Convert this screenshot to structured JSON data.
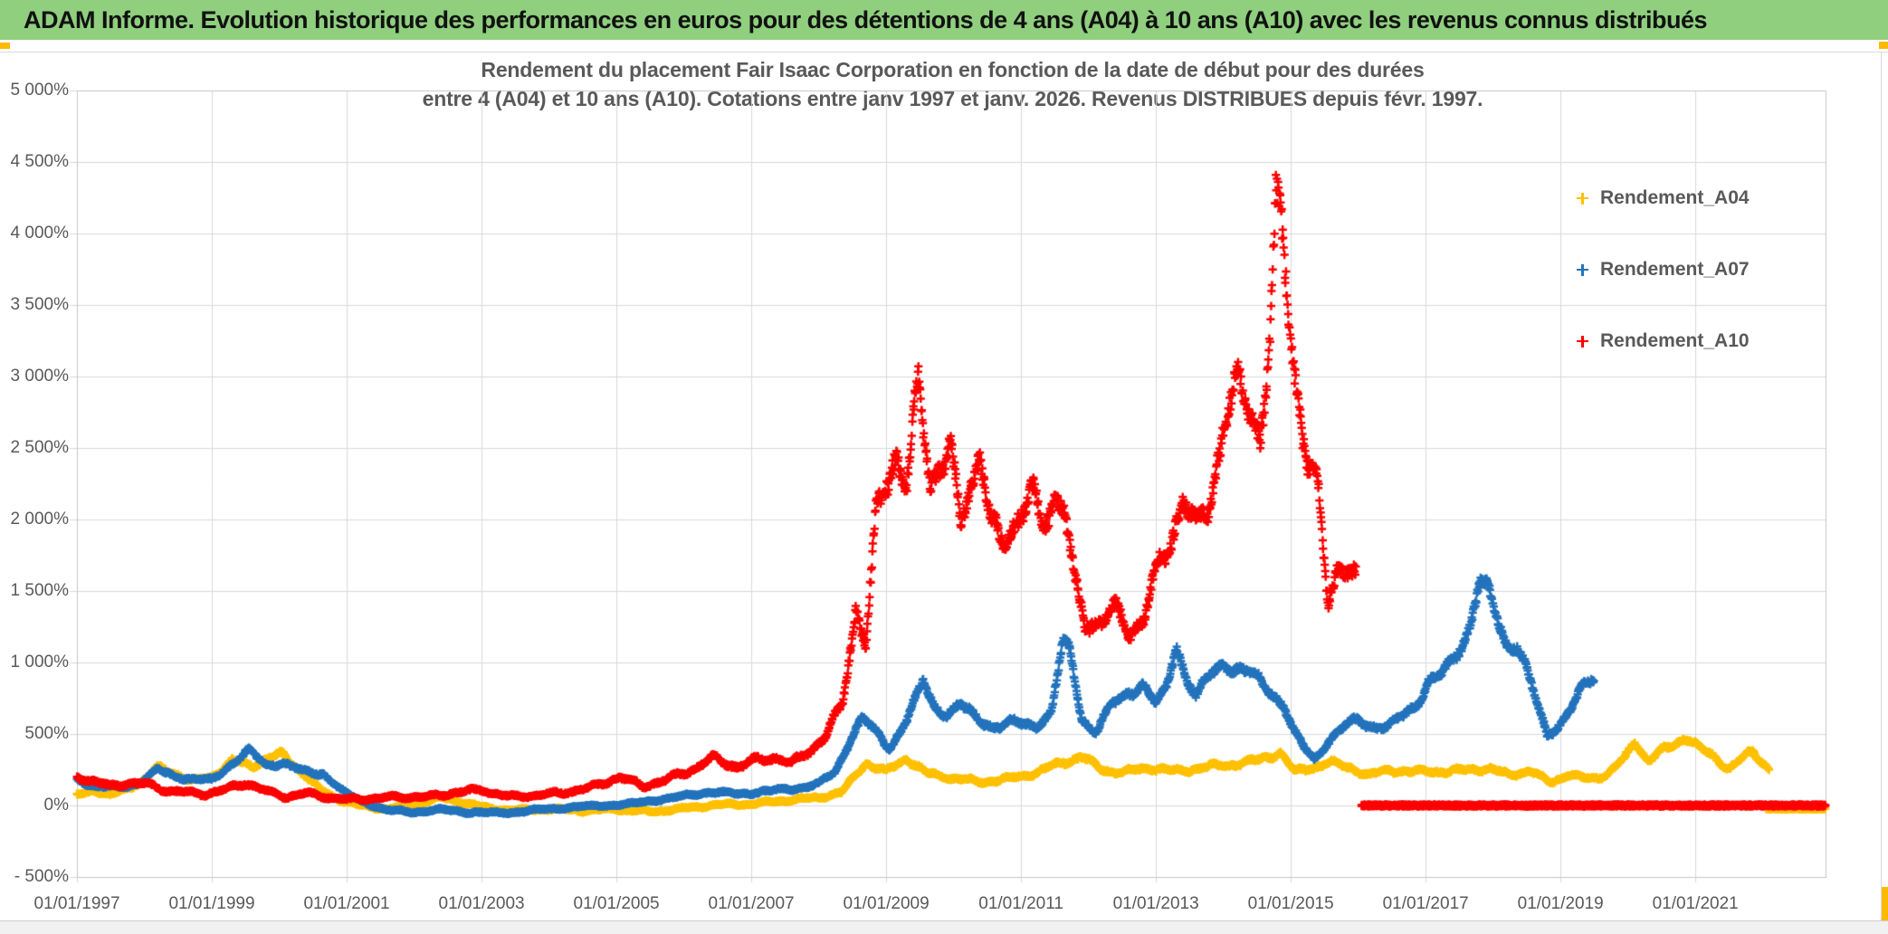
{
  "header": {
    "title": "ADAM Informe. Evolution historique des performances en euros pour des détentions de 4 ans (A04) à 10 ans (A10) avec les revenus connus distribués"
  },
  "chart": {
    "title_line1": "Rendement du placement Fair Isaac Corporation en fonction de la date de début pour des durées",
    "title_line2": "entre 4 (A04) et 10 ans (A10). Cotations entre janv 1997 et janv. 2026. Revenus DISTRIBUES depuis févr. 1997."
  },
  "chart_data": {
    "type": "scatter",
    "marker": "plus",
    "grid": true,
    "legend_position": "right-top",
    "colors": {
      "grid": "#d9d9d9",
      "border": "#c6c6c6",
      "axis_text": "#595959",
      "title_text": "#595959",
      "header_bg": "#8FCF7E",
      "accent": "#FFB900"
    },
    "x_axis": {
      "min": 1997.0,
      "max": 2022.93,
      "ticks": [
        [
          "01/01/1997",
          1997
        ],
        [
          "01/01/1999",
          1999
        ],
        [
          "01/01/2001",
          2001
        ],
        [
          "01/01/2003",
          2003
        ],
        [
          "01/01/2005",
          2005
        ],
        [
          "01/01/2007",
          2007
        ],
        [
          "01/01/2009",
          2009
        ],
        [
          "01/01/2011",
          2011
        ],
        [
          "01/01/2013",
          2013
        ],
        [
          "01/01/2015",
          2015
        ],
        [
          "01/01/2017",
          2017
        ],
        [
          "01/01/2019",
          2019
        ],
        [
          "01/01/2021",
          2021
        ]
      ]
    },
    "y_axis": {
      "min": -500,
      "max": 5000,
      "step": 500,
      "ticks": [
        [
          "5 000%",
          5000
        ],
        [
          "4 500%",
          4500
        ],
        [
          "4 000%",
          4000
        ],
        [
          "3 500%",
          3500
        ],
        [
          "3 000%",
          3000
        ],
        [
          "2 500%",
          2500
        ],
        [
          "2 000%",
          2000
        ],
        [
          "1 500%",
          1500
        ],
        [
          "1 000%",
          1000
        ],
        [
          "500%",
          500
        ],
        [
          "0%",
          0
        ],
        [
          "- 500%",
          -500
        ]
      ]
    },
    "series": [
      {
        "name": "Rendement_A04",
        "color": "#FFC000",
        "seed": 11,
        "noise_base": 14,
        "noise_k": 0.05,
        "anchors": [
          [
            1997.0,
            70
          ],
          [
            1997.25,
            110
          ],
          [
            1997.5,
            70
          ],
          [
            1997.75,
            120
          ],
          [
            1998.0,
            180
          ],
          [
            1998.2,
            265
          ],
          [
            1998.45,
            230
          ],
          [
            1998.7,
            170
          ],
          [
            1999.0,
            200
          ],
          [
            1999.3,
            310
          ],
          [
            1999.6,
            280
          ],
          [
            1999.85,
            330
          ],
          [
            2000.05,
            355
          ],
          [
            2000.3,
            250
          ],
          [
            2000.6,
            110
          ],
          [
            2000.9,
            40
          ],
          [
            2001.2,
            0
          ],
          [
            2001.6,
            -25
          ],
          [
            2002.0,
            5
          ],
          [
            2002.4,
            55
          ],
          [
            2002.7,
            25
          ],
          [
            2003.1,
            -20
          ],
          [
            2003.5,
            -35
          ],
          [
            2004.0,
            -25
          ],
          [
            2004.5,
            -35
          ],
          [
            2005.0,
            -25
          ],
          [
            2005.5,
            -45
          ],
          [
            2006.0,
            -20
          ],
          [
            2006.5,
            5
          ],
          [
            2007.0,
            10
          ],
          [
            2007.5,
            35
          ],
          [
            2008.0,
            55
          ],
          [
            2008.35,
            95
          ],
          [
            2008.7,
            300
          ],
          [
            2009.0,
            235
          ],
          [
            2009.3,
            330
          ],
          [
            2009.6,
            225
          ],
          [
            2010.0,
            190
          ],
          [
            2010.4,
            165
          ],
          [
            2010.8,
            185
          ],
          [
            2011.2,
            225
          ],
          [
            2011.6,
            300
          ],
          [
            2011.9,
            340
          ],
          [
            2012.2,
            250
          ],
          [
            2012.5,
            230
          ],
          [
            2012.9,
            265
          ],
          [
            2013.3,
            240
          ],
          [
            2013.7,
            265
          ],
          [
            2014.1,
            285
          ],
          [
            2014.5,
            315
          ],
          [
            2014.85,
            370
          ],
          [
            2015.05,
            235
          ],
          [
            2015.3,
            265
          ],
          [
            2015.6,
            300
          ],
          [
            2015.9,
            265
          ],
          [
            2016.15,
            205
          ],
          [
            2016.45,
            255
          ],
          [
            2016.75,
            230
          ],
          [
            2017.05,
            245
          ],
          [
            2017.35,
            230
          ],
          [
            2017.65,
            260
          ],
          [
            2017.95,
            250
          ],
          [
            2018.25,
            220
          ],
          [
            2018.55,
            235
          ],
          [
            2018.85,
            165
          ],
          [
            2019.1,
            210
          ],
          [
            2019.4,
            190
          ],
          [
            2019.7,
            215
          ],
          [
            2019.95,
            330
          ],
          [
            2020.1,
            455
          ],
          [
            2020.3,
            305
          ],
          [
            2020.55,
            395
          ],
          [
            2020.85,
            480
          ],
          [
            2021.05,
            400
          ],
          [
            2021.25,
            355
          ],
          [
            2021.5,
            250
          ],
          [
            2021.7,
            330
          ],
          [
            2021.85,
            385
          ],
          [
            2022.0,
            300
          ],
          [
            2022.1,
            255
          ]
        ]
      },
      {
        "name": "Rendement_A07",
        "color": "#2373BC",
        "seed": 22,
        "noise_base": 12,
        "noise_k": 0.055,
        "anchors": [
          [
            1997.0,
            185
          ],
          [
            1997.3,
            130
          ],
          [
            1997.6,
            125
          ],
          [
            1997.9,
            155
          ],
          [
            1998.2,
            245
          ],
          [
            1998.45,
            210
          ],
          [
            1998.7,
            185
          ],
          [
            1999.0,
            175
          ],
          [
            1999.3,
            295
          ],
          [
            1999.55,
            380
          ],
          [
            1999.8,
            285
          ],
          [
            2000.05,
            300
          ],
          [
            2000.35,
            235
          ],
          [
            2000.65,
            225
          ],
          [
            2000.95,
            95
          ],
          [
            2001.25,
            25
          ],
          [
            2001.6,
            -35
          ],
          [
            2002.0,
            -45
          ],
          [
            2002.4,
            -30
          ],
          [
            2002.8,
            -45
          ],
          [
            2003.2,
            -55
          ],
          [
            2003.6,
            -40
          ],
          [
            2004.0,
            -25
          ],
          [
            2004.4,
            -10
          ],
          [
            2004.8,
            0
          ],
          [
            2005.2,
            10
          ],
          [
            2005.6,
            40
          ],
          [
            2006.0,
            65
          ],
          [
            2006.4,
            95
          ],
          [
            2006.8,
            80
          ],
          [
            2007.2,
            100
          ],
          [
            2007.6,
            115
          ],
          [
            2008.0,
            150
          ],
          [
            2008.25,
            235
          ],
          [
            2008.5,
            500
          ],
          [
            2008.65,
            610
          ],
          [
            2008.85,
            505
          ],
          [
            2009.05,
            400
          ],
          [
            2009.25,
            555
          ],
          [
            2009.45,
            745
          ],
          [
            2009.55,
            860
          ],
          [
            2009.7,
            700
          ],
          [
            2009.9,
            645
          ],
          [
            2010.1,
            700
          ],
          [
            2010.35,
            605
          ],
          [
            2010.6,
            555
          ],
          [
            2010.9,
            575
          ],
          [
            2011.2,
            560
          ],
          [
            2011.45,
            645
          ],
          [
            2011.62,
            1130
          ],
          [
            2011.72,
            1080
          ],
          [
            2011.9,
            620
          ],
          [
            2012.1,
            510
          ],
          [
            2012.35,
            700
          ],
          [
            2012.6,
            800
          ],
          [
            2012.8,
            845
          ],
          [
            2013.0,
            705
          ],
          [
            2013.15,
            805
          ],
          [
            2013.3,
            1140
          ],
          [
            2013.45,
            905
          ],
          [
            2013.6,
            755
          ],
          [
            2013.8,
            905
          ],
          [
            2014.0,
            1000
          ],
          [
            2014.2,
            955
          ],
          [
            2014.45,
            905
          ],
          [
            2014.7,
            805
          ],
          [
            2014.9,
            700
          ],
          [
            2015.05,
            505
          ],
          [
            2015.2,
            400
          ],
          [
            2015.35,
            325
          ],
          [
            2015.55,
            450
          ],
          [
            2015.8,
            550
          ],
          [
            2016.0,
            600
          ],
          [
            2016.2,
            560
          ],
          [
            2016.45,
            545
          ],
          [
            2016.65,
            620
          ],
          [
            2016.85,
            705
          ],
          [
            2017.05,
            870
          ],
          [
            2017.25,
            905
          ],
          [
            2017.45,
            1050
          ],
          [
            2017.65,
            1260
          ],
          [
            2017.8,
            1580
          ],
          [
            2017.92,
            1490
          ],
          [
            2018.05,
            1310
          ],
          [
            2018.2,
            1110
          ],
          [
            2018.35,
            1150
          ],
          [
            2018.5,
            955
          ],
          [
            2018.65,
            705
          ],
          [
            2018.8,
            480
          ],
          [
            2018.95,
            555
          ],
          [
            2019.1,
            650
          ],
          [
            2019.3,
            805
          ],
          [
            2019.5,
            880
          ]
        ]
      },
      {
        "name": "Rendement_A10",
        "color": "#FF0000",
        "seed": 33,
        "noise_base": 14,
        "noise_k": 0.075,
        "anchors": [
          [
            1997.0,
            205
          ],
          [
            1997.25,
            170
          ],
          [
            1997.5,
            130
          ],
          [
            1997.75,
            160
          ],
          [
            1998.0,
            150
          ],
          [
            1998.3,
            110
          ],
          [
            1998.6,
            90
          ],
          [
            1998.9,
            80
          ],
          [
            1999.2,
            110
          ],
          [
            1999.5,
            160
          ],
          [
            1999.8,
            100
          ],
          [
            2000.1,
            60
          ],
          [
            2000.4,
            85
          ],
          [
            2000.7,
            60
          ],
          [
            2001.0,
            40
          ],
          [
            2001.4,
            50
          ],
          [
            2001.8,
            60
          ],
          [
            2002.2,
            60
          ],
          [
            2002.6,
            90
          ],
          [
            2003.0,
            110
          ],
          [
            2003.4,
            60
          ],
          [
            2003.8,
            70
          ],
          [
            2004.2,
            90
          ],
          [
            2004.6,
            120
          ],
          [
            2005.05,
            200
          ],
          [
            2005.4,
            135
          ],
          [
            2005.75,
            180
          ],
          [
            2006.1,
            250
          ],
          [
            2006.45,
            330
          ],
          [
            2006.8,
            270
          ],
          [
            2007.1,
            320
          ],
          [
            2007.35,
            340
          ],
          [
            2007.6,
            290
          ],
          [
            2007.9,
            400
          ],
          [
            2008.1,
            480
          ],
          [
            2008.35,
            705
          ],
          [
            2008.55,
            1390
          ],
          [
            2008.7,
            1120
          ],
          [
            2008.85,
            1990
          ],
          [
            2009.0,
            2280
          ],
          [
            2009.15,
            2490
          ],
          [
            2009.3,
            2210
          ],
          [
            2009.48,
            2930
          ],
          [
            2009.65,
            2310
          ],
          [
            2009.8,
            2390
          ],
          [
            2009.95,
            2480
          ],
          [
            2010.1,
            1930
          ],
          [
            2010.25,
            2290
          ],
          [
            2010.4,
            2480
          ],
          [
            2010.55,
            1960
          ],
          [
            2010.7,
            1810
          ],
          [
            2010.85,
            1950
          ],
          [
            2011.0,
            2060
          ],
          [
            2011.15,
            2200
          ],
          [
            2011.3,
            1910
          ],
          [
            2011.5,
            2190
          ],
          [
            2011.65,
            2090
          ],
          [
            2011.8,
            1520
          ],
          [
            2011.95,
            1260
          ],
          [
            2012.15,
            1310
          ],
          [
            2012.4,
            1350
          ],
          [
            2012.6,
            1210
          ],
          [
            2012.8,
            1310
          ],
          [
            2013.0,
            1600
          ],
          [
            2013.2,
            1810
          ],
          [
            2013.4,
            2190
          ],
          [
            2013.6,
            1910
          ],
          [
            2013.8,
            2110
          ],
          [
            2014.0,
            2690
          ],
          [
            2014.2,
            2890
          ],
          [
            2014.4,
            2790
          ],
          [
            2014.55,
            2620
          ],
          [
            2014.7,
            3310
          ],
          [
            2014.78,
            4120
          ],
          [
            2014.88,
            3930
          ],
          [
            2015.0,
            3310
          ],
          [
            2015.1,
            2890
          ],
          [
            2015.25,
            2420
          ],
          [
            2015.4,
            2190
          ],
          [
            2015.55,
            1420
          ],
          [
            2015.7,
            1700
          ],
          [
            2015.85,
            1660
          ],
          [
            2015.97,
            1560
          ]
        ]
      }
    ],
    "placeholders": [
      {
        "series": "Rendement_A04",
        "color": "#FFC000",
        "from": 2022.05,
        "to": 2022.93,
        "value": -22,
        "step": 0.006
      },
      {
        "series": "Rendement_A10",
        "color": "#FF0000",
        "from": 2016.05,
        "to": 2022.93,
        "value": 0,
        "step": 0.0035
      }
    ],
    "legend": [
      {
        "label": "Rendement_A04",
        "color": "#FFC000"
      },
      {
        "label": "Rendement_A07",
        "color": "#2373BC"
      },
      {
        "label": "Rendement_A10",
        "color": "#FF0000"
      }
    ]
  }
}
